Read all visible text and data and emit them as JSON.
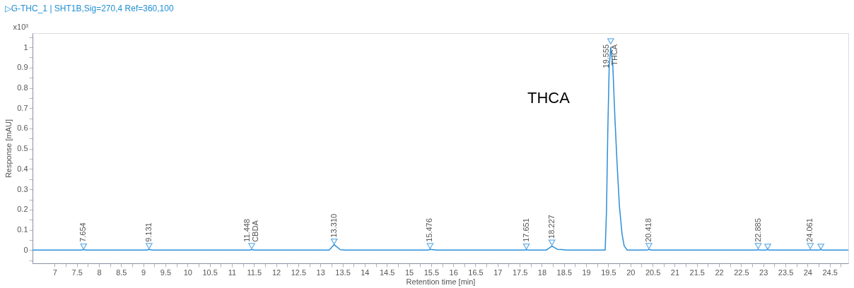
{
  "chart_data": {
    "type": "line",
    "title": "▷G-THC_1 | SHT1B,Sig=270,4 Ref=360,100",
    "xlabel": "Retention time [min]",
    "ylabel": "Response [mAU]",
    "xlim": [
      6.5,
      24.92
    ],
    "ylim": [
      -0.065,
      1.07
    ],
    "xticks": [
      7,
      {
        "value": 7.25,
        "label": null
      },
      7.5,
      {
        "value": 7.75,
        "label": null
      },
      8,
      {
        "value": 8.25,
        "label": null
      },
      8.5,
      {
        "value": 8.75,
        "label": null
      },
      9,
      {
        "value": 9.25,
        "label": null
      },
      9.5,
      {
        "value": 9.75,
        "label": null
      },
      10,
      {
        "value": 10.25,
        "label": null
      },
      10.5,
      {
        "value": 10.75,
        "label": null
      },
      11,
      {
        "value": 11.25,
        "label": null
      },
      11.5,
      {
        "value": 11.75,
        "label": null
      },
      12,
      {
        "value": 12.25,
        "label": null
      },
      12.5,
      {
        "value": 12.75,
        "label": null
      },
      13,
      {
        "value": 13.25,
        "label": null
      },
      13.5,
      {
        "value": 13.75,
        "label": null
      },
      14,
      {
        "value": 14.25,
        "label": null
      },
      14.5,
      {
        "value": 14.75,
        "label": null
      },
      15,
      {
        "value": 15.25,
        "label": null
      },
      15.5,
      {
        "value": 15.75,
        "label": null
      },
      16,
      {
        "value": 16.25,
        "label": null
      },
      16.5,
      {
        "value": 16.75,
        "label": null
      },
      17,
      {
        "value": 17.25,
        "label": null
      },
      17.5,
      {
        "value": 17.75,
        "label": null
      },
      18,
      {
        "value": 18.25,
        "label": null
      },
      18.5,
      {
        "value": 18.75,
        "label": null
      },
      19,
      {
        "value": 19.25,
        "label": null
      },
      19.5,
      {
        "value": 19.75,
        "label": null
      },
      20,
      {
        "value": 20.25,
        "label": null
      },
      20.5,
      {
        "value": 20.75,
        "label": null
      },
      21,
      {
        "value": 21.25,
        "label": null
      },
      21.5,
      {
        "value": 21.75,
        "label": null
      },
      22,
      {
        "value": 22.25,
        "label": null
      },
      22.5,
      {
        "value": 22.75,
        "label": null
      },
      23,
      {
        "value": 23.25,
        "label": null
      },
      23.5,
      {
        "value": 23.75,
        "label": null
      },
      24,
      {
        "value": 24.25,
        "label": null
      },
      24.5,
      {
        "value": 24.75,
        "label": null
      }
    ],
    "yticks": [
      {
        "value": -0.05,
        "label": null
      },
      0,
      {
        "value": 0.05,
        "label": null
      },
      0.1,
      {
        "value": 0.15,
        "label": null
      },
      0.2,
      {
        "value": 0.25,
        "label": null
      },
      0.3,
      {
        "value": 0.35,
        "label": null
      },
      0.4,
      {
        "value": 0.45,
        "label": null
      },
      0.5,
      {
        "value": 0.55,
        "label": null
      },
      0.6,
      {
        "value": 0.65,
        "label": null
      },
      0.7,
      {
        "value": 0.75,
        "label": null
      },
      0.8,
      {
        "value": 0.85,
        "label": null
      },
      0.9,
      {
        "value": 0.95,
        "label": null
      },
      1,
      {
        "value": 1.05,
        "label": null
      }
    ],
    "grid": false,
    "series": [
      {
        "type": "line",
        "color": "#2b8fdb",
        "x": [
          6.5,
          7.6,
          7.654,
          7.7,
          9.08,
          9.131,
          9.2,
          11.4,
          11.448,
          11.5,
          13.2,
          13.31,
          13.45,
          13.55,
          15.43,
          15.476,
          15.55,
          15.62,
          17.6,
          17.651,
          17.7,
          18.1,
          18.227,
          18.35,
          18.45,
          18.55,
          19.43,
          19.46,
          19.49,
          19.52,
          19.555,
          19.6,
          19.65,
          19.7,
          19.75,
          19.81,
          19.86,
          19.93,
          20.37,
          20.418,
          20.47,
          22.85,
          22.885,
          22.92,
          23.07,
          23.1,
          23.13,
          24.03,
          24.061,
          24.1,
          24.27,
          24.3,
          24.33,
          24.92
        ],
        "values": [
          0,
          0,
          0.003,
          0,
          0,
          0.004,
          0,
          0,
          0.003,
          0,
          0,
          0.027,
          0.002,
          0,
          0,
          0.004,
          0.002,
          0,
          0,
          0.002,
          0,
          0,
          0.02,
          0.004,
          0.003,
          0,
          0,
          0.2,
          0.6,
          0.9,
          1.0,
          0.92,
          0.65,
          0.42,
          0.22,
          0.08,
          0.02,
          0,
          0,
          0.004,
          0,
          0,
          0.003,
          0,
          0,
          0.004,
          0,
          0,
          0.002,
          0,
          0,
          0.004,
          0,
          0
        ]
      },
      {
        "type": "scatter",
        "marker": "triangle",
        "color": "#2b8fdb",
        "x": [
          7.654,
          9.131,
          11.448,
          13.31,
          15.476,
          17.651,
          18.227,
          19.555,
          20.418,
          22.885,
          23.1,
          24.061,
          24.3
        ],
        "values": [
          0.018,
          0.02,
          0.02,
          0.042,
          0.02,
          0.018,
          0.037,
          1.03,
          0.02,
          0.02,
          0.017,
          0.02,
          0.017
        ]
      }
    ],
    "annotations": [
      "x10³",
      "THCA",
      {
        "text": "7.654",
        "x": 7.654,
        "y": 0.04
      },
      {
        "text": "9.131",
        "x": 9.131,
        "y": 0.04
      },
      {
        "text": "11.448",
        "x": 11.448,
        "y": 0.04
      },
      {
        "text": "CBDA",
        "x": 11.448,
        "y": 0.04
      },
      {
        "text": "13.310",
        "x": 13.31,
        "y": 0.062
      },
      {
        "text": "15.476",
        "x": 15.476,
        "y": 0.04
      },
      {
        "text": "17.651",
        "x": 17.651,
        "y": 0.04
      },
      {
        "text": "18.227",
        "x": 18.227,
        "y": 0.057
      },
      {
        "text": "19.555",
        "x": 19.555,
        "y": 1.015
      },
      {
        "text": "THCA",
        "x": 19.555,
        "y": 1.015
      },
      {
        "text": "20.418",
        "x": 20.418,
        "y": 0.04
      },
      {
        "text": "22.885",
        "x": 22.885,
        "y": 0.04
      },
      {
        "text": "24.061",
        "x": 24.061,
        "y": 0.04
      }
    ]
  }
}
